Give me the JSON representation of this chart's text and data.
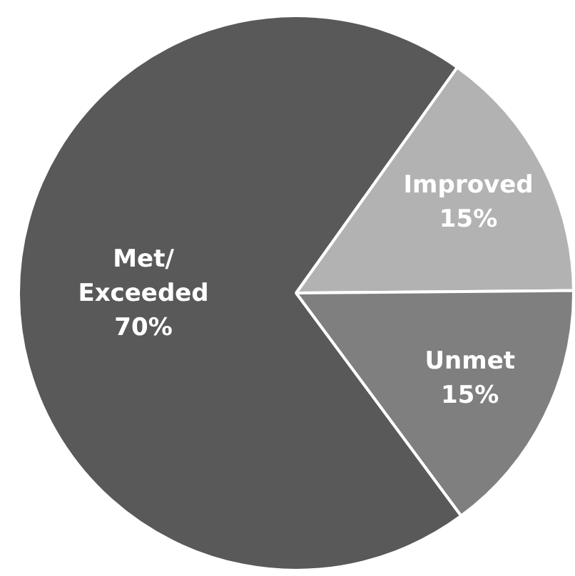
{
  "chart_data": {
    "type": "pie",
    "categories": [
      "Improved",
      "Unmet",
      "Met/ Exceeded"
    ],
    "values": [
      15,
      15,
      70
    ],
    "colors": [
      "#b2b2b2",
      "#7f7f7f",
      "#595959"
    ],
    "value_labels": [
      "15%",
      "15%",
      "70%"
    ],
    "legend": false
  }
}
